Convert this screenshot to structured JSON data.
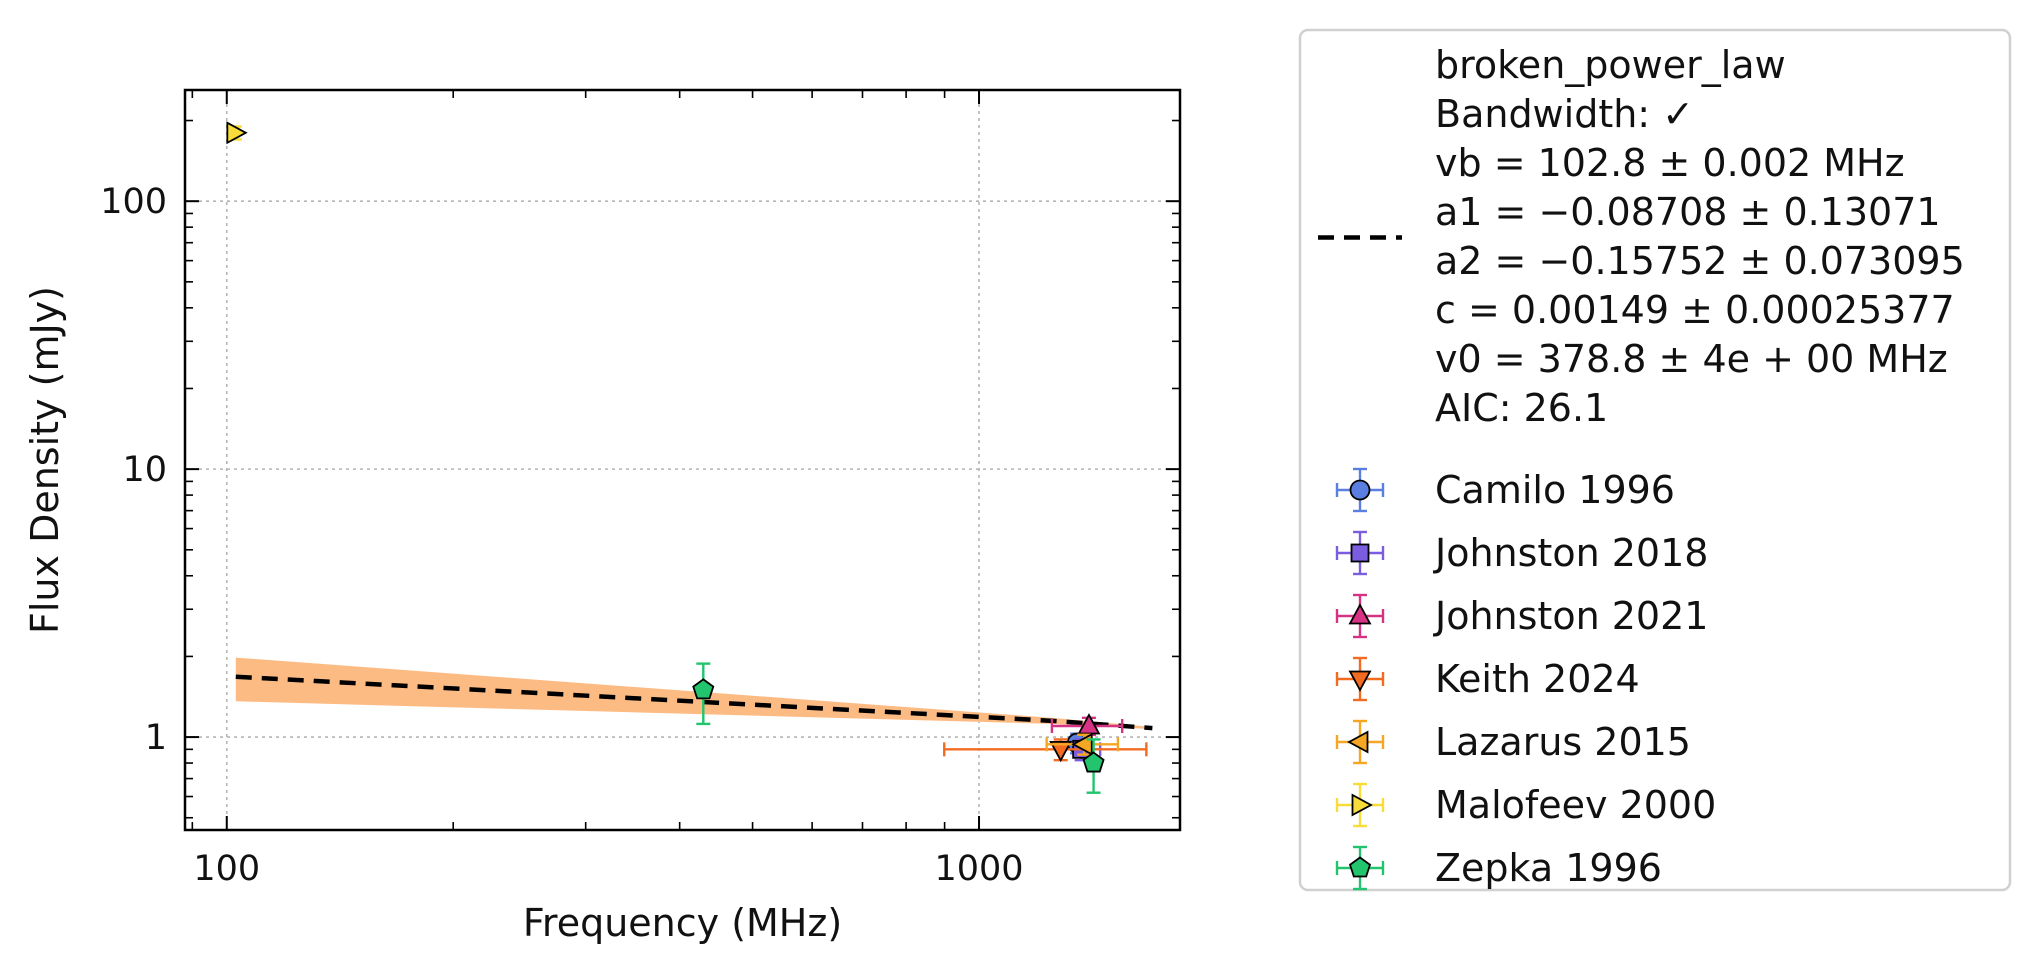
{
  "chart_data": {
    "type": "scatter",
    "xlabel": "Frequency (MHz)",
    "ylabel": "Flux Density (mJy)",
    "x_scale": "log",
    "y_scale": "log",
    "xlim": [
      88,
      1850
    ],
    "ylim": [
      0.45,
      260
    ],
    "x_ticks": [
      {
        "value": 100,
        "label": "100"
      },
      {
        "value": 1000,
        "label": "1000"
      }
    ],
    "y_ticks": [
      {
        "value": 1,
        "label": "1"
      },
      {
        "value": 10,
        "label": "10"
      },
      {
        "value": 100,
        "label": "100"
      }
    ],
    "grid": true,
    "legend_position": "outside-right",
    "fit": {
      "name": "broken_power_law",
      "color": "#000000",
      "band_color": "#fdbb84",
      "x": [
        102.8,
        1250,
        1700
      ],
      "y": [
        1.68,
        1.15,
        1.08
      ],
      "band_upper": [
        1.98,
        1.18,
        1.09
      ],
      "band_lower": [
        1.36,
        1.12,
        1.07
      ],
      "legend_lines": [
        "broken_power_law",
        "Bandwidth: ✓",
        "vb = 102.8 ± 0.002 MHz",
        "a1 = −0.08708 ± 0.13071",
        "a2 = −0.15752 ± 0.073095",
        "c = 0.00149 ± 0.00025377",
        "v0 = 378.8 ± 4e + 00 MHz",
        "AIC: 26.1"
      ]
    },
    "series": [
      {
        "name": "Camilo 1996",
        "marker": "circle",
        "color": "#5b7fe0",
        "points": [
          {
            "x": 1350,
            "y": 0.95,
            "yerr": [
              0.08,
              0.08
            ],
            "xerr": [
              30,
              30
            ]
          }
        ]
      },
      {
        "name": "Johnston 2018",
        "marker": "square",
        "color": "#7b5ee0",
        "points": [
          {
            "x": 1369,
            "y": 0.9,
            "yerr": [
              0.08,
              0.08
            ],
            "xerr": [
              80,
              80
            ]
          }
        ]
      },
      {
        "name": "Johnston 2021",
        "marker": "triangle-up",
        "color": "#d63384",
        "points": [
          {
            "x": 1400,
            "y": 1.1,
            "yerr": [
              0.08,
              0.08
            ],
            "xerr": [
              150,
              150
            ]
          }
        ]
      },
      {
        "name": "Keith 2024",
        "marker": "triangle-down",
        "color": "#f26b21",
        "points": [
          {
            "x": 1284,
            "y": 0.9,
            "yerr": [
              0.08,
              0.08
            ],
            "xerr": [
              385,
              385
            ]
          }
        ]
      },
      {
        "name": "Lazarus 2015",
        "marker": "triangle-left",
        "color": "#f5a623",
        "points": [
          {
            "x": 1380,
            "y": 0.94,
            "yerr": [
              0.08,
              0.08
            ],
            "xerr": [
              150,
              150
            ]
          }
        ]
      },
      {
        "name": "Malofeev 2000",
        "marker": "triangle-right",
        "color": "#f7dc3a",
        "points": [
          {
            "x": 102.5,
            "y": 180,
            "yerr": [
              10,
              10
            ],
            "xerr": [
              1,
              1
            ]
          }
        ]
      },
      {
        "name": "Zepka 1996",
        "marker": "pentagon",
        "color": "#22c46e",
        "points": [
          {
            "x": 430,
            "y": 1.5,
            "yerr": [
              0.38,
              0.38
            ],
            "xerr": [
              0,
              0
            ]
          },
          {
            "x": 1420,
            "y": 0.8,
            "yerr": [
              0.18,
              0.18
            ],
            "xerr": [
              0,
              0
            ]
          }
        ]
      }
    ]
  }
}
